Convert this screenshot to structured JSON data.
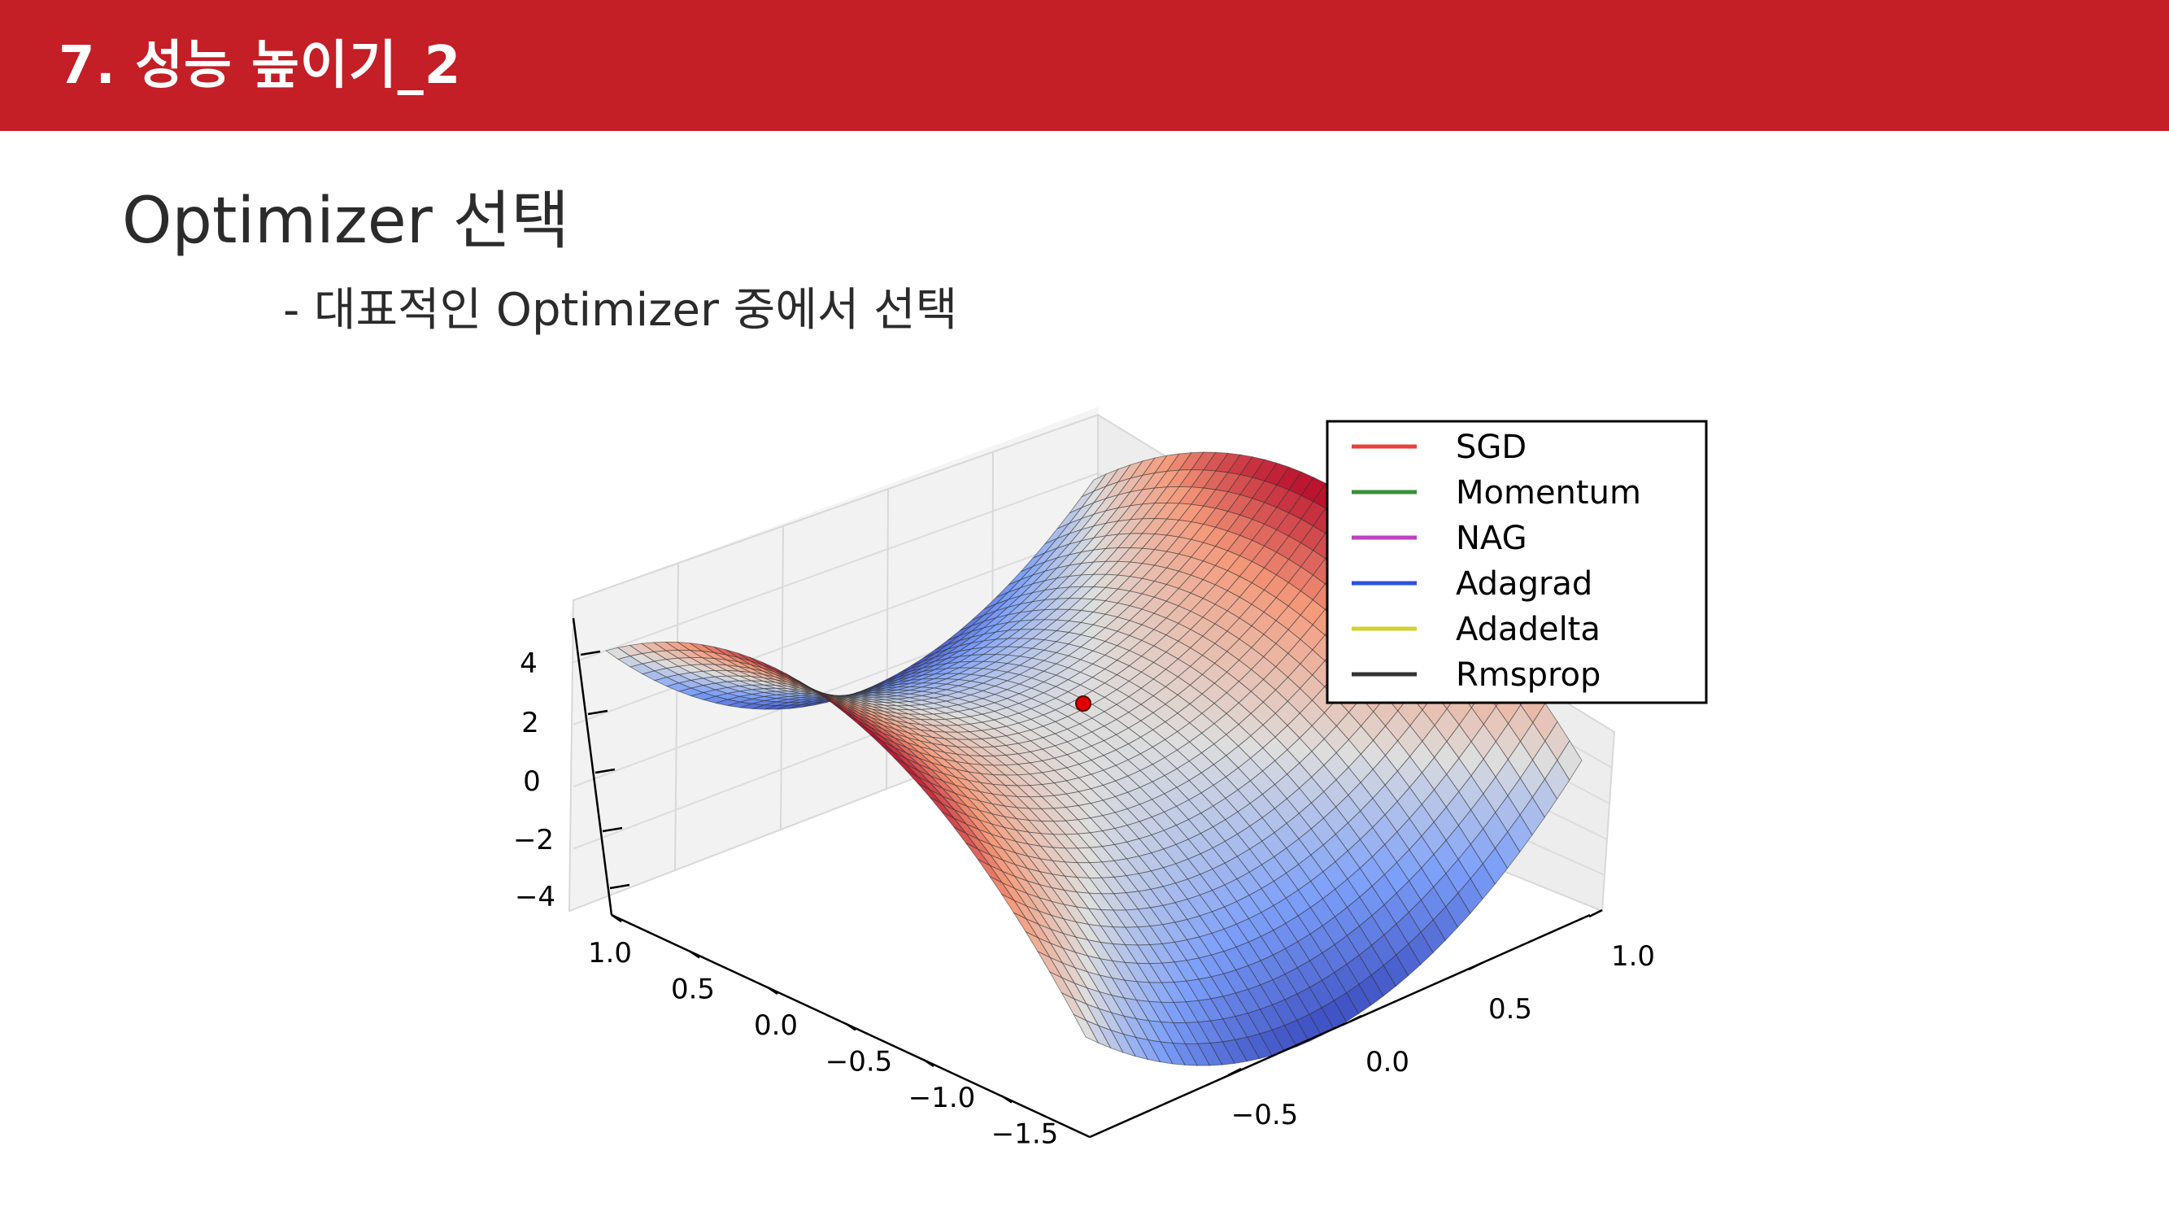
{
  "header": {
    "title": "7. 성능 높이기_2",
    "background": "#c41e26"
  },
  "content": {
    "title": "Optimizer 선택",
    "subtitle": "- 대표적인 Optimizer 중에서 선택"
  },
  "chart_data": {
    "type": "surface3d",
    "function": "z = x^2 - y^2 (saddle)",
    "colormap": "coolwarm",
    "grid": true,
    "legend_position": "top-right",
    "start_point_color": "#e00000",
    "x_ticks": [
      "1.0",
      "0.5",
      "0.0",
      "−0.5",
      "−1.0",
      "−1.5"
    ],
    "y_ticks": [
      "−0.5",
      "0.0",
      "0.5",
      "1.0"
    ],
    "z_ticks": [
      "4",
      "2",
      "0",
      "−2",
      "−4"
    ],
    "legend": [
      {
        "label": "SGD",
        "color": "#e8403a"
      },
      {
        "label": "Momentum",
        "color": "#3a8f3a"
      },
      {
        "label": "NAG",
        "color": "#c040c0"
      },
      {
        "label": "Adagrad",
        "color": "#3050e0"
      },
      {
        "label": "Adadelta",
        "color": "#d0d030"
      },
      {
        "label": "Rmsprop",
        "color": "#333333"
      }
    ]
  }
}
